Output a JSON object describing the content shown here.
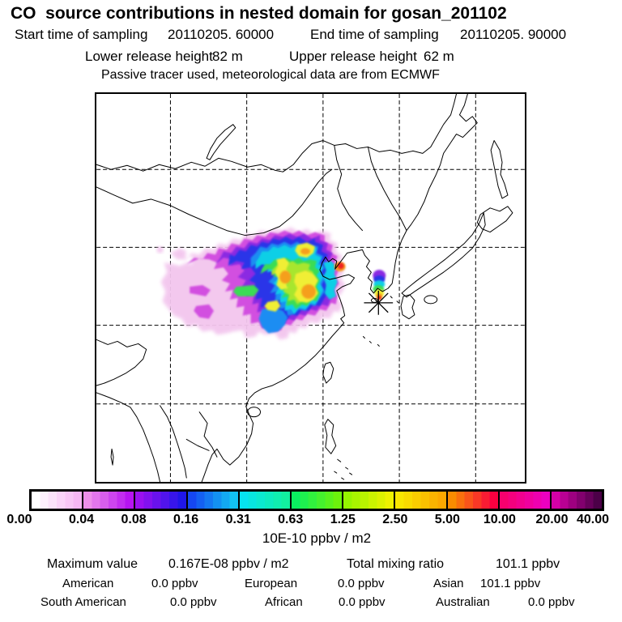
{
  "header": {
    "title": "CO  source contributions in nested domain for gosan_201102",
    "sampling": {
      "start_label": "Start time of sampling",
      "start_value": "20110205. 60000",
      "end_label": "End time of sampling",
      "end_value": "20110205. 90000"
    },
    "release": {
      "lower_label": "Lower release height",
      "lower_value": "82 m",
      "upper_label": "Upper release height",
      "upper_value": "62 m"
    },
    "tracer_note": "Passive tracer used, meteorological data are from ECMWF"
  },
  "chart_data": {
    "type": "heatmap",
    "title": "CO source contributions in nested domain for gosan_201102",
    "map": {
      "region": "East Asia nested domain (China, Mongolia, Korea, Japan, Indochina)",
      "gridlines": {
        "vertical_count": 5,
        "horizontal_count": 4,
        "style": "dashed"
      },
      "station_marker": {
        "name": "gosan",
        "symbol": "asterisk",
        "position_pct": {
          "x": 65.9,
          "y": 53.8
        }
      }
    },
    "plume": {
      "description": "Source-contribution plume over eastern China with secondary narrow plume over southwestern South Korea",
      "hotspots": [
        {
          "name": "bohai-coast-red-maximum",
          "position_pct": {
            "x": 57.0,
            "y": 44.5
          }
        },
        {
          "name": "central-china-orange",
          "position_pct": {
            "x": 44.1,
            "y": 47.2
          }
        },
        {
          "name": "east-china-orange",
          "position_pct": {
            "x": 49.5,
            "y": 50.9
          }
        },
        {
          "name": "korea-plume-orange",
          "position_pct": {
            "x": 66.0,
            "y": 52.2
          }
        }
      ]
    },
    "colorbar": {
      "tick_labels": [
        "0.00",
        "0.04",
        "0.08",
        "0.16",
        "0.31",
        "0.63",
        "1.25",
        "2.50",
        "5.00",
        "10.00",
        "20.00",
        "40.00"
      ],
      "units": "10E-10 ppbv / m2",
      "steps_per_segment": 6,
      "segments": [
        {
          "from": "#ffffff",
          "to": "#f6b6f3"
        },
        {
          "from": "#ee8fea",
          "to": "#b714f2"
        },
        {
          "from": "#9a10f0",
          "to": "#2016e8"
        },
        {
          "from": "#1547f2",
          "to": "#12c2f2"
        },
        {
          "from": "#06e4f0",
          "to": "#12f0a0"
        },
        {
          "from": "#0af060",
          "to": "#6cf20c"
        },
        {
          "from": "#96f400",
          "to": "#eef200"
        },
        {
          "from": "#f8e600",
          "to": "#fca800"
        },
        {
          "from": "#fa8c00",
          "to": "#fa0040"
        },
        {
          "from": "#f6006e",
          "to": "#ec00c0"
        },
        {
          "from": "#d400a6",
          "to": "#4c0048"
        }
      ]
    }
  },
  "stats": {
    "maximum_label": "Maximum value",
    "maximum_value": "0.167E-08 ppbv / m2",
    "total_label": "Total mixing ratio",
    "total_value": "101.1 ppbv",
    "regions": [
      {
        "label": "American",
        "value": "0.0 ppbv"
      },
      {
        "label": "European",
        "value": "0.0 ppbv"
      },
      {
        "label": "Asian",
        "value": "101.1 ppbv"
      },
      {
        "label": "South American",
        "value": "0.0 ppbv"
      },
      {
        "label": "African",
        "value": "0.0 ppbv"
      },
      {
        "label": "Australian",
        "value": "0.0 ppbv"
      }
    ]
  }
}
